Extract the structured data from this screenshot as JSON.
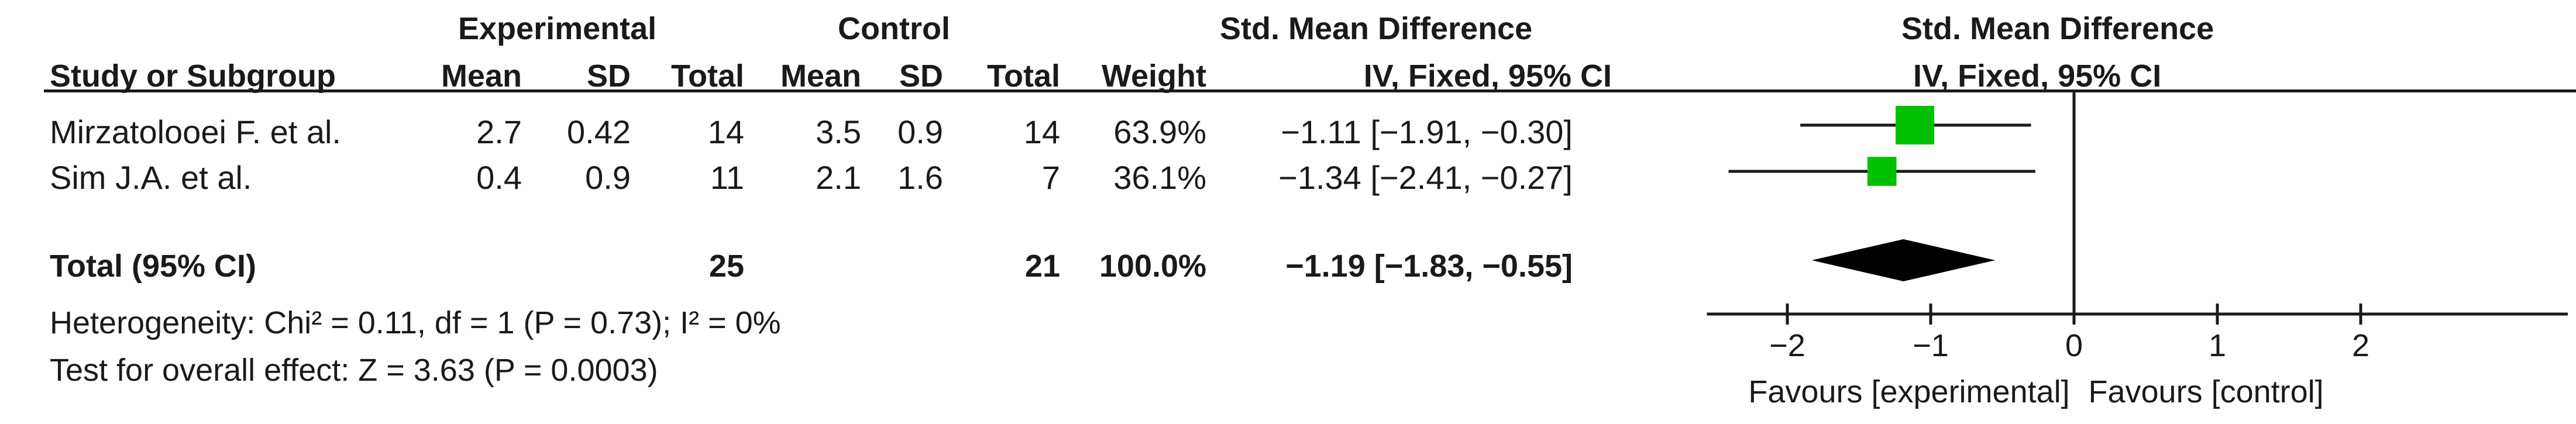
{
  "header": {
    "group_experimental": "Experimental",
    "group_control": "Control",
    "effect_title": "Std. Mean Difference",
    "effect_method": "IV, Fixed, 95% CI",
    "plot_title": "Std. Mean Difference",
    "plot_method": "IV, Fixed, 95% CI",
    "col_study": "Study or Subgroup",
    "col_mean_e": "Mean",
    "col_sd_e": "SD",
    "col_total_e": "Total",
    "col_mean_c": "Mean",
    "col_sd_c": "SD",
    "col_total_c": "Total",
    "col_weight": "Weight"
  },
  "rows": [
    {
      "study": "Mirzatolooei F. et al.",
      "mean_e": "2.7",
      "sd_e": "0.42",
      "total_e": "14",
      "mean_c": "3.5",
      "sd_c": "0.9",
      "total_c": "14",
      "weight": "63.9%",
      "ci_text": "−1.11 [−1.91, −0.30]"
    },
    {
      "study": "Sim J.A. et al.",
      "mean_e": "0.4",
      "sd_e": "0.9",
      "total_e": "11",
      "mean_c": "2.1",
      "sd_c": "1.6",
      "total_c": "7",
      "weight": "36.1%",
      "ci_text": "−1.34 [−2.41, −0.27]"
    }
  ],
  "total": {
    "label": "Total (95% CI)",
    "total_e": "25",
    "total_c": "21",
    "weight": "100.0%",
    "ci_text": "−1.19 [−1.83, −0.55]"
  },
  "footer": {
    "heterogeneity": "Heterogeneity: Chi² = 0.11, df = 1 (P = 0.73); I² = 0%",
    "overall_effect": "Test for overall effect: Z = 3.63 (P = 0.0003)"
  },
  "colors": {
    "study_marker": "#00c000",
    "diamond": "#000000",
    "line": "#1a1a1a"
  },
  "chart_data": {
    "type": "scatter",
    "xlim": [
      -2.5,
      3.2
    ],
    "x_ticks": [
      -2,
      -1,
      0,
      1,
      2
    ],
    "x_tick_labels": [
      "−2",
      "−1",
      "0",
      "1",
      "2"
    ],
    "favours_left": "Favours [experimental]",
    "favours_right": "Favours [control]",
    "studies": [
      {
        "name": "Mirzatolooei F. et al.",
        "estimate": -1.11,
        "ci": [
          -1.91,
          -0.3
        ],
        "weight": 63.9
      },
      {
        "name": "Sim J.A. et al.",
        "estimate": -1.34,
        "ci": [
          -2.41,
          -0.27
        ],
        "weight": 36.1
      }
    ],
    "pooled": {
      "estimate": -1.19,
      "ci": [
        -1.83,
        -0.55
      ]
    },
    "null_value": 0
  }
}
